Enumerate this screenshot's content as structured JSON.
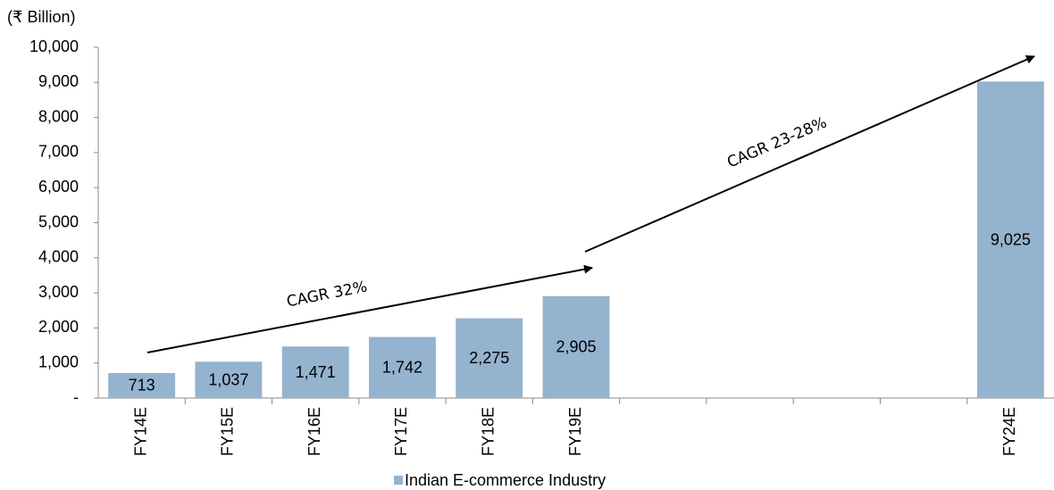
{
  "chart_data": {
    "type": "bar",
    "title": "(₹ Billion)",
    "categories": [
      "FY14E",
      "FY15E",
      "FY16E",
      "FY17E",
      "FY18E",
      "FY19E",
      null,
      null,
      null,
      null,
      "FY24E"
    ],
    "series": [
      {
        "name": "Indian E-commerce Industry",
        "color": "#94b3cf",
        "values": [
          713,
          1037,
          1471,
          1742,
          2275,
          2905,
          null,
          null,
          null,
          null,
          9025
        ],
        "value_labels": [
          "713",
          "1,037",
          "1,471",
          "1,742",
          "2,275",
          "2,905",
          null,
          null,
          null,
          null,
          "9,025"
        ]
      }
    ],
    "ylim": [
      0,
      10000
    ],
    "yticks": [
      {
        "value": 0,
        "label": "-"
      },
      {
        "value": 1000,
        "label": "1,000"
      },
      {
        "value": 2000,
        "label": "2,000"
      },
      {
        "value": 3000,
        "label": "3,000"
      },
      {
        "value": 4000,
        "label": "4,000"
      },
      {
        "value": 5000,
        "label": "5,000"
      },
      {
        "value": 6000,
        "label": "6,000"
      },
      {
        "value": 7000,
        "label": "7,000"
      },
      {
        "value": 8000,
        "label": "8,000"
      },
      {
        "value": 9000,
        "label": "9,000"
      },
      {
        "value": 10000,
        "label": "10,000"
      }
    ],
    "grid": false,
    "legend": "bottom",
    "annotations": [
      "CAGR 32%",
      "CAGR 23-28%"
    ]
  }
}
